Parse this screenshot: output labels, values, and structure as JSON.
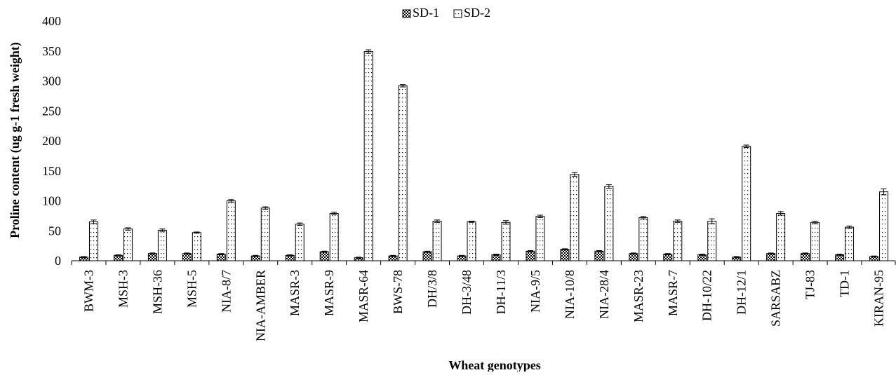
{
  "chart_data": {
    "type": "bar",
    "title": "",
    "xlabel": "Wheat genotypes",
    "ylabel": "Proline content (ug g-1 fresh weight)",
    "ylim": [
      0,
      400
    ],
    "yticks": [
      0,
      50,
      100,
      150,
      200,
      250,
      300,
      350,
      400
    ],
    "grid": false,
    "legend_position": "top-center",
    "categories": [
      "BWM-3",
      "MSH-3",
      "MSH-36",
      "MSH-5",
      "NIA-8/7",
      "NIA-AMBER",
      "MASR-3",
      "MASR-9",
      "MASR-64",
      "BWS-78",
      "DH/3/8",
      "DH-3/48",
      "DH-11/3",
      "NIA-9/5",
      "NIA-10/8",
      "NIA-28/4",
      "MASR-23",
      "MASR-7",
      "DH-10/22",
      "DH-12/1",
      "SARSABZ",
      "TJ-83",
      "TD-1",
      "KIRAN-95"
    ],
    "series": [
      {
        "name": "SD-1",
        "pattern": "checkered",
        "values": [
          6,
          9,
          12,
          12,
          11,
          8,
          9,
          15,
          5,
          8,
          15,
          8,
          10,
          16,
          19,
          16,
          12,
          11,
          10,
          6,
          12,
          12,
          10,
          7
        ],
        "errors": [
          1,
          1,
          1,
          1,
          1,
          1,
          1,
          1,
          1,
          1,
          1,
          1,
          1,
          1,
          1,
          1,
          1,
          1,
          1,
          1,
          1,
          1,
          1,
          1
        ]
      },
      {
        "name": "SD-2",
        "pattern": "dotted",
        "values": [
          65,
          53,
          51,
          47,
          100,
          88,
          61,
          79,
          349,
          292,
          66,
          65,
          64,
          74,
          144,
          124,
          72,
          66,
          66,
          191,
          79,
          64,
          56,
          115
        ],
        "errors": [
          3,
          2,
          2,
          1,
          2,
          2,
          2,
          2,
          3,
          2,
          2,
          1,
          3,
          2,
          3,
          3,
          2,
          2,
          4,
          2,
          3,
          2,
          2,
          5
        ]
      }
    ]
  }
}
